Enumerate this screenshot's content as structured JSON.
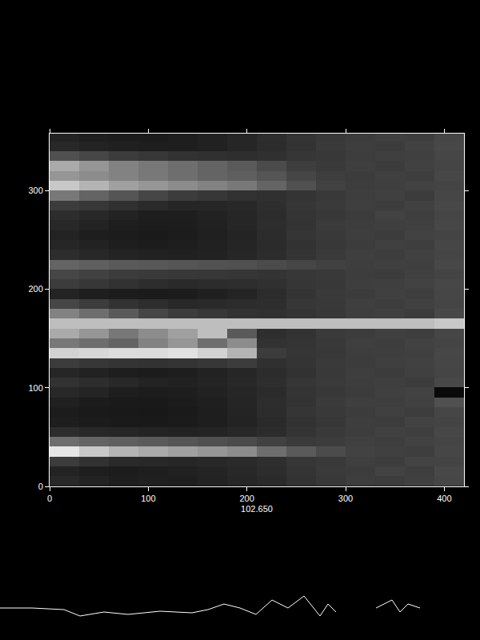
{
  "chart_data": [
    {
      "type": "heatmap",
      "x": [
        15,
        45,
        75,
        105,
        135,
        165,
        195,
        225,
        255,
        285,
        315,
        345,
        375,
        405
      ],
      "y": [
        5,
        15,
        25,
        35,
        45,
        55,
        65,
        75,
        85,
        95,
        105,
        115,
        125,
        135,
        145,
        155,
        165,
        175,
        185,
        195,
        205,
        215,
        225,
        235,
        245,
        255,
        265,
        275,
        285,
        295,
        305,
        315,
        325,
        335,
        345,
        355
      ],
      "z": [
        [
          40,
          35,
          30,
          32,
          30,
          34,
          38,
          42,
          50,
          56,
          62,
          60,
          64,
          70
        ],
        [
          35,
          30,
          28,
          30,
          33,
          36,
          40,
          45,
          52,
          58,
          60,
          66,
          62,
          72
        ],
        [
          60,
          50,
          42,
          40,
          38,
          40,
          42,
          46,
          54,
          57,
          63,
          61,
          67,
          68
        ],
        [
          230,
          200,
          180,
          170,
          160,
          150,
          140,
          110,
          90,
          75,
          66,
          64,
          62,
          70
        ],
        [
          110,
          100,
          95,
          90,
          85,
          80,
          75,
          65,
          58,
          60,
          64,
          62,
          66,
          69
        ],
        [
          45,
          40,
          38,
          36,
          34,
          36,
          40,
          44,
          52,
          58,
          61,
          65,
          63,
          71
        ],
        [
          30,
          28,
          26,
          25,
          27,
          30,
          35,
          42,
          50,
          55,
          62,
          60,
          66,
          68
        ],
        [
          28,
          26,
          25,
          24,
          26,
          30,
          36,
          44,
          53,
          57,
          60,
          64,
          61,
          70
        ],
        [
          32,
          28,
          26,
          25,
          28,
          31,
          37,
          45,
          51,
          59,
          63,
          62,
          65,
          80
        ],
        [
          40,
          36,
          30,
          28,
          30,
          34,
          38,
          43,
          52,
          56,
          60,
          64,
          66,
          10
        ],
        [
          50,
          45,
          40,
          35,
          33,
          36,
          40,
          46,
          54,
          58,
          61,
          63,
          60,
          72
        ],
        [
          38,
          34,
          30,
          28,
          30,
          34,
          38,
          44,
          50,
          57,
          62,
          60,
          64,
          69
        ],
        [
          60,
          55,
          52,
          50,
          52,
          55,
          60,
          48,
          52,
          58,
          60,
          63,
          65,
          70
        ],
        [
          210,
          215,
          220,
          220,
          225,
          210,
          180,
          60,
          53,
          56,
          61,
          62,
          64,
          71
        ],
        [
          120,
          110,
          100,
          130,
          150,
          110,
          140,
          50,
          52,
          57,
          63,
          61,
          66,
          68
        ],
        [
          170,
          150,
          120,
          140,
          160,
          190,
          90,
          46,
          51,
          58,
          60,
          64,
          62,
          70
        ],
        [
          190,
          190,
          190,
          190,
          190,
          190,
          190,
          190,
          190,
          190,
          190,
          190,
          190,
          200
        ],
        [
          130,
          110,
          90,
          70,
          60,
          55,
          50,
          48,
          52,
          56,
          62,
          64,
          60,
          72
        ],
        [
          70,
          60,
          50,
          45,
          40,
          42,
          44,
          46,
          55,
          57,
          63,
          61,
          65,
          69
        ],
        [
          35,
          30,
          28,
          27,
          28,
          32,
          36,
          44,
          52,
          58,
          60,
          64,
          62,
          70
        ],
        [
          60,
          55,
          50,
          45,
          42,
          44,
          46,
          48,
          54,
          56,
          62,
          63,
          66,
          71
        ],
        [
          70,
          65,
          60,
          58,
          56,
          55,
          54,
          52,
          55,
          57,
          61,
          60,
          64,
          68
        ],
        [
          100,
          95,
          90,
          88,
          85,
          82,
          80,
          75,
          70,
          65,
          62,
          64,
          63,
          72
        ],
        [
          45,
          40,
          36,
          34,
          32,
          34,
          38,
          44,
          52,
          58,
          63,
          61,
          65,
          69
        ],
        [
          38,
          34,
          30,
          28,
          30,
          33,
          37,
          43,
          50,
          56,
          60,
          64,
          62,
          70
        ],
        [
          35,
          30,
          28,
          26,
          28,
          32,
          36,
          44,
          53,
          57,
          62,
          60,
          66,
          68
        ],
        [
          40,
          35,
          30,
          28,
          29,
          33,
          38,
          45,
          51,
          59,
          61,
          63,
          64,
          71
        ],
        [
          45,
          40,
          35,
          30,
          30,
          34,
          38,
          44,
          52,
          56,
          60,
          66,
          62,
          69
        ],
        [
          60,
          55,
          48,
          42,
          38,
          38,
          40,
          46,
          54,
          58,
          63,
          61,
          65,
          72
        ],
        [
          120,
          100,
          85,
          70,
          60,
          55,
          50,
          48,
          52,
          57,
          62,
          64,
          60,
          70
        ],
        [
          200,
          180,
          160,
          150,
          140,
          130,
          120,
          100,
          80,
          65,
          61,
          63,
          66,
          68
        ],
        [
          150,
          140,
          130,
          120,
          110,
          100,
          95,
          85,
          70,
          62,
          60,
          64,
          62,
          71
        ],
        [
          170,
          150,
          130,
          120,
          110,
          100,
          90,
          75,
          62,
          58,
          63,
          60,
          65,
          69
        ],
        [
          80,
          70,
          60,
          55,
          50,
          48,
          46,
          48,
          54,
          56,
          61,
          63,
          64,
          70
        ],
        [
          40,
          35,
          32,
          30,
          30,
          33,
          38,
          44,
          51,
          58,
          62,
          60,
          66,
          72
        ],
        [
          35,
          30,
          28,
          28,
          30,
          34,
          38,
          45,
          52,
          57,
          60,
          64,
          62,
          70
        ]
      ],
      "zlim": [
        0,
        255
      ],
      "xlim": [
        0,
        420
      ],
      "ylim": [
        0,
        358
      ],
      "xticks": [
        0,
        100,
        200,
        300,
        400
      ],
      "yticks": [
        0,
        100,
        200,
        300
      ],
      "xlabel": "102.650",
      "color": "#ffffff"
    },
    {
      "type": "line",
      "x": [
        0,
        40,
        80,
        100,
        130,
        160,
        200,
        240,
        260,
        280,
        300,
        320,
        340,
        360,
        380,
        400,
        410,
        420,
        440,
        470,
        490,
        500,
        510,
        525
      ],
      "series": [
        {
          "color": "#ffffff",
          "values": [
            30,
            30,
            28,
            20,
            25,
            22,
            26,
            24,
            28,
            35,
            30,
            22,
            40,
            30,
            45,
            20,
            35,
            25,
            null,
            30,
            40,
            25,
            35,
            30
          ]
        }
      ],
      "xlim": [
        0,
        600
      ],
      "ylim": [
        0,
        100
      ],
      "tick_labels": false
    }
  ]
}
